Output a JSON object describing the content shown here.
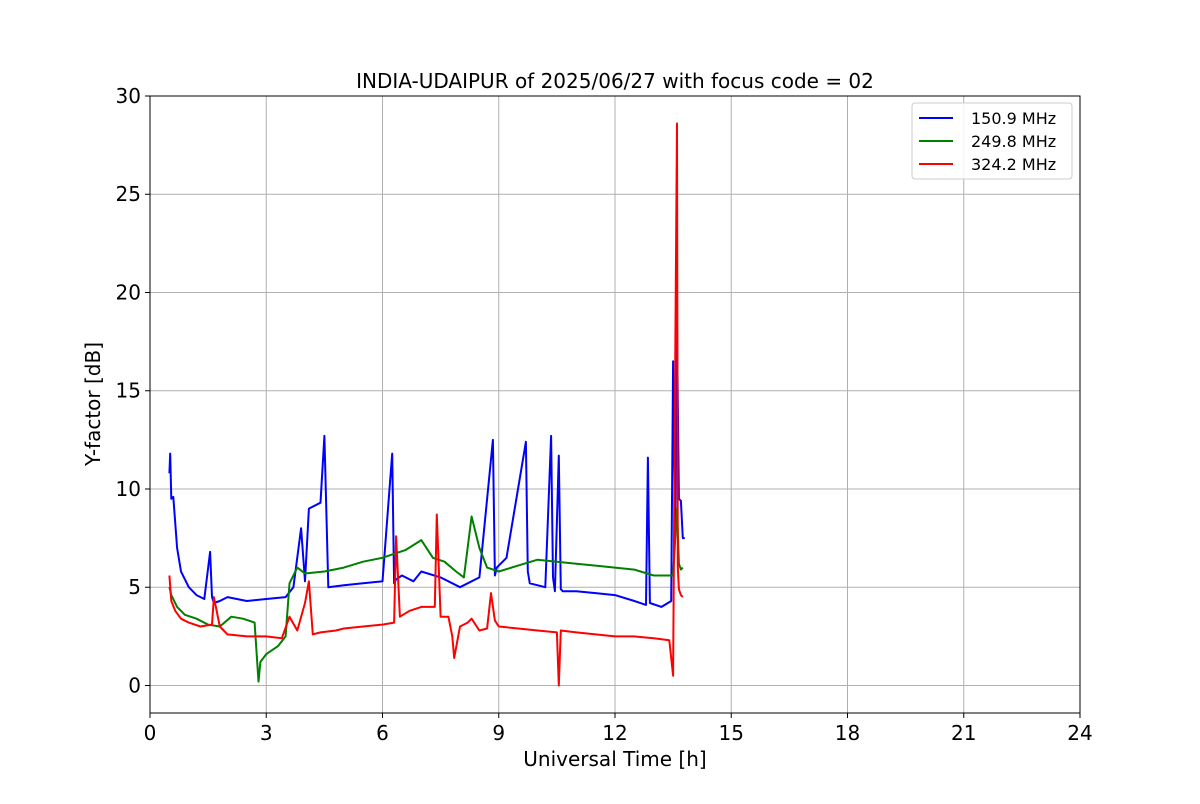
{
  "chart_data": {
    "type": "line",
    "title": "INDIA-UDAIPUR of 2025/06/27 with focus code = 02",
    "xlabel": "Universal Time [h]",
    "ylabel": "Y-factor [dB]",
    "xlim": [
      0,
      24
    ],
    "ylim": [
      -1.4,
      30
    ],
    "xticks": [
      0,
      3,
      6,
      9,
      12,
      15,
      18,
      21,
      24
    ],
    "yticks": [
      0,
      5,
      10,
      15,
      20,
      25,
      30
    ],
    "grid": true,
    "legend_position": "top-right",
    "series": [
      {
        "name": "150.9 MHz",
        "color": "#0000ff",
        "x": [
          0.5,
          0.52,
          0.55,
          0.6,
          0.7,
          0.8,
          1.0,
          1.2,
          1.4,
          1.55,
          1.6,
          1.65,
          1.8,
          2.0,
          2.5,
          3.0,
          3.5,
          3.7,
          3.9,
          4.0,
          4.1,
          4.4,
          4.5,
          4.6,
          5.0,
          5.5,
          6.0,
          6.25,
          6.3,
          6.35,
          6.5,
          6.8,
          7.0,
          7.5,
          8.0,
          8.5,
          8.85,
          8.9,
          8.95,
          9.2,
          9.7,
          9.75,
          9.8,
          10.2,
          10.35,
          10.4,
          10.45,
          10.55,
          10.6,
          10.65,
          11.0,
          11.5,
          12.0,
          12.5,
          12.8,
          12.85,
          12.9,
          13.2,
          13.45,
          13.5,
          13.55,
          13.6,
          13.65,
          13.7,
          13.75,
          13.8
        ],
        "values": [
          10.8,
          11.8,
          9.5,
          9.6,
          7.0,
          5.8,
          5.0,
          4.6,
          4.4,
          6.8,
          4.5,
          4.2,
          4.3,
          4.5,
          4.3,
          4.4,
          4.5,
          5.0,
          8.0,
          5.3,
          9.0,
          9.3,
          12.7,
          5.0,
          5.1,
          5.2,
          5.3,
          11.8,
          5.2,
          5.4,
          5.6,
          5.3,
          5.8,
          5.5,
          5.0,
          5.5,
          12.5,
          5.6,
          6.0,
          6.5,
          12.4,
          5.8,
          5.2,
          5.0,
          12.7,
          5.5,
          4.8,
          11.7,
          4.9,
          4.8,
          4.8,
          4.7,
          4.6,
          4.3,
          4.1,
          11.6,
          4.2,
          4.0,
          4.3,
          16.5,
          7.5,
          18.2,
          9.5,
          9.4,
          7.5,
          7.5
        ]
      },
      {
        "name": "249.8 MHz",
        "color": "#008000",
        "x": [
          0.5,
          0.55,
          0.7,
          0.9,
          1.2,
          1.5,
          1.8,
          2.1,
          2.4,
          2.7,
          2.8,
          2.85,
          3.0,
          3.3,
          3.5,
          3.6,
          3.8,
          4.0,
          4.5,
          5.0,
          5.5,
          6.0,
          6.3,
          6.6,
          7.0,
          7.3,
          7.6,
          7.9,
          8.1,
          8.3,
          8.5,
          8.7,
          9.0,
          9.5,
          10.0,
          10.5,
          11.0,
          11.5,
          12.0,
          12.5,
          13.0,
          13.5,
          13.6,
          13.65,
          13.7,
          13.75
        ],
        "values": [
          5.0,
          4.6,
          4.0,
          3.6,
          3.4,
          3.1,
          3.0,
          3.5,
          3.4,
          3.2,
          0.2,
          1.2,
          1.6,
          2.0,
          2.5,
          5.2,
          6.0,
          5.7,
          5.8,
          6.0,
          6.3,
          6.5,
          6.7,
          6.9,
          7.4,
          6.5,
          6.3,
          5.8,
          5.5,
          8.6,
          7.0,
          6.0,
          5.8,
          6.1,
          6.4,
          6.3,
          6.2,
          6.1,
          6.0,
          5.9,
          5.6,
          5.6,
          9.0,
          6.2,
          5.9,
          6.0
        ]
      },
      {
        "name": "324.2 MHz",
        "color": "#ff0000",
        "x": [
          0.5,
          0.55,
          0.65,
          0.8,
          1.0,
          1.3,
          1.6,
          1.65,
          1.8,
          2.0,
          2.5,
          3.0,
          3.4,
          3.6,
          3.8,
          4.0,
          4.1,
          4.2,
          4.4,
          4.8,
          5.0,
          5.5,
          6.0,
          6.3,
          6.35,
          6.45,
          6.7,
          7.0,
          7.35,
          7.4,
          7.5,
          7.7,
          7.8,
          7.85,
          8.0,
          8.2,
          8.3,
          8.5,
          8.7,
          8.8,
          8.9,
          9.0,
          9.5,
          10.0,
          10.5,
          10.55,
          10.6,
          11.0,
          11.5,
          12.0,
          12.5,
          13.0,
          13.4,
          13.5,
          13.55,
          13.6,
          13.62,
          13.65,
          13.7,
          13.75
        ],
        "values": [
          5.6,
          4.3,
          3.8,
          3.4,
          3.2,
          3.0,
          3.1,
          4.5,
          3.0,
          2.6,
          2.5,
          2.5,
          2.4,
          3.5,
          2.8,
          4.2,
          5.3,
          2.6,
          2.7,
          2.8,
          2.9,
          3.0,
          3.1,
          3.2,
          7.6,
          3.5,
          3.8,
          4.0,
          4.0,
          8.7,
          3.5,
          3.5,
          2.5,
          1.4,
          3.0,
          3.2,
          3.4,
          2.8,
          2.9,
          4.7,
          3.3,
          3.0,
          2.9,
          2.8,
          2.7,
          0.0,
          2.8,
          2.7,
          2.6,
          2.5,
          2.5,
          2.4,
          2.3,
          0.5,
          15.6,
          28.6,
          6.0,
          4.9,
          4.6,
          4.5
        ]
      }
    ]
  }
}
